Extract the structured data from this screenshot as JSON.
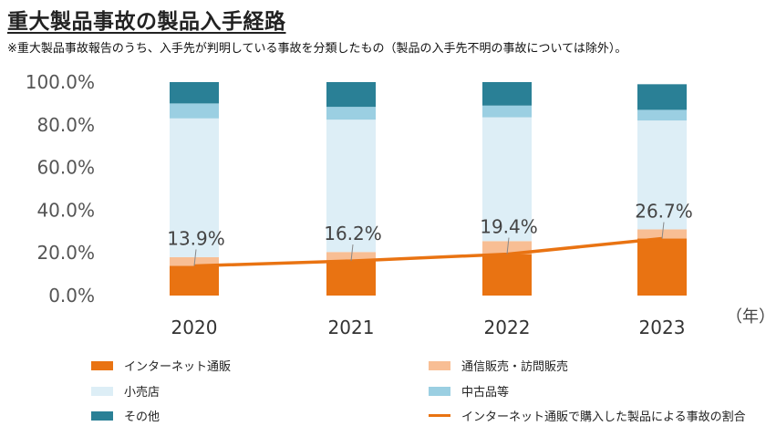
{
  "title": "重大製品事故の製品入手経路",
  "subtitle": "※重大製品事故報告のうち、入手先が判明している事故を分類したもの（製品の入手先不明の事故については除外）。",
  "chart_data": {
    "type": "bar",
    "stacked": true,
    "categories": [
      "2020",
      "2021",
      "2022",
      "2023"
    ],
    "x_unit_label": "（年）",
    "ylim": [
      0,
      100
    ],
    "y_ticks": [
      "0.0%",
      "20.0%",
      "40.0%",
      "60.0%",
      "80.0%",
      "100.0%"
    ],
    "grid": false,
    "series": [
      {
        "name": "インターネット通販",
        "color": "#E97312",
        "values": [
          13.9,
          16.2,
          19.4,
          26.7
        ]
      },
      {
        "name": "通信販売・訪問販売",
        "color": "#F8BE94",
        "values": [
          4.1,
          4.2,
          6.1,
          4.3
        ]
      },
      {
        "name": "小売店",
        "color": "#DDEEF6",
        "values": [
          65.0,
          62.0,
          58.0,
          51.0
        ]
      },
      {
        "name": "中古品等",
        "color": "#9BCFE2",
        "values": [
          7.0,
          6.0,
          5.5,
          5.0
        ]
      },
      {
        "name": "その他",
        "color": "#2A8096",
        "values": [
          10.0,
          11.6,
          11.0,
          12.0
        ]
      }
    ],
    "line_series": {
      "name": "インターネット通販で購入した製品による事故の割合",
      "color": "#E97312",
      "values": [
        13.9,
        16.2,
        19.4,
        26.7
      ],
      "labels": [
        "13.9%",
        "16.2%",
        "19.4%",
        "26.7%"
      ]
    },
    "legend_position": "bottom"
  }
}
